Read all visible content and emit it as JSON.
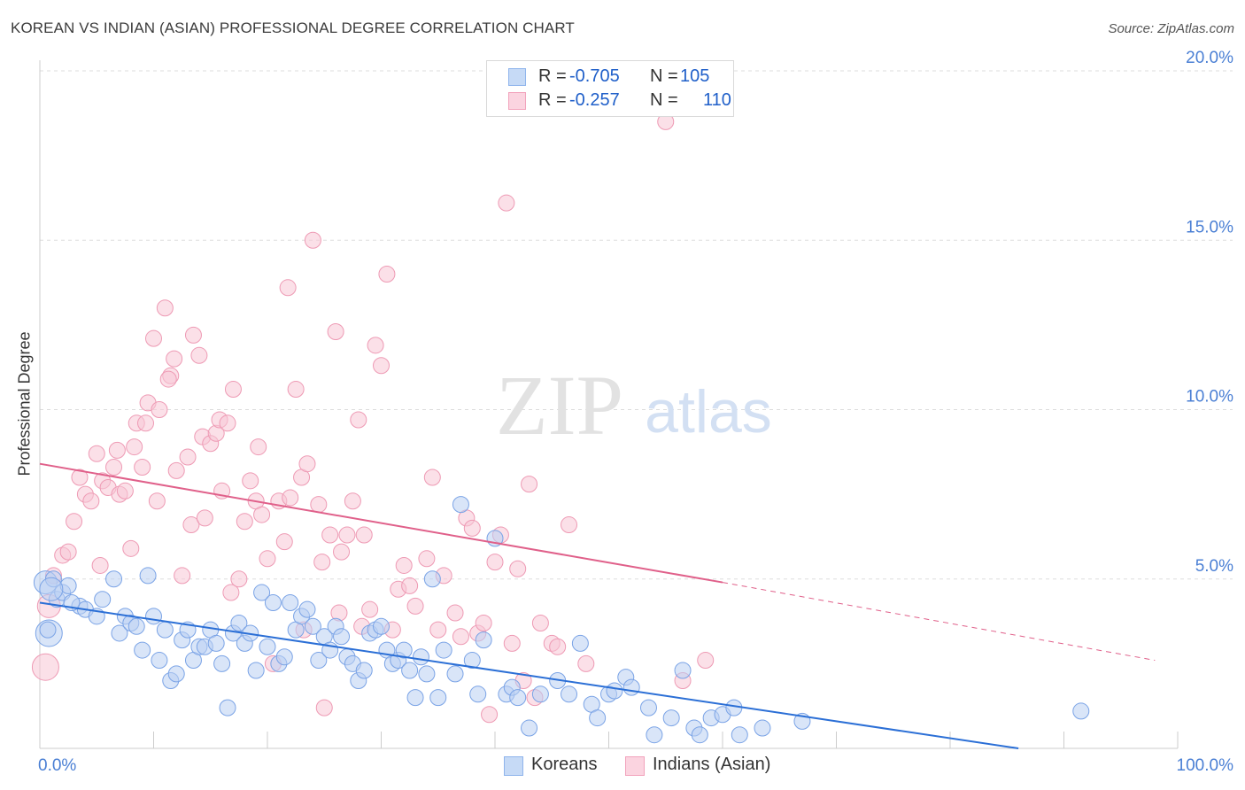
{
  "header": {
    "title": "KOREAN VS INDIAN (ASIAN) PROFESSIONAL DEGREE CORRELATION CHART",
    "source": "Source: ZipAtlas.com"
  },
  "watermark": {
    "zip": "ZIP",
    "atlas": "atlas"
  },
  "legend": {
    "rows": [
      {
        "r_label": "R =",
        "r_value": "-0.705",
        "n_label": "N =",
        "n_value": "105",
        "color": "#8fb4ec"
      },
      {
        "r_label": "R =",
        "r_value": "-0.257",
        "n_label": "N =",
        "n_value": "110",
        "color": "#f2a3bc"
      }
    ]
  },
  "bottom_legend": [
    {
      "label": "Koreans",
      "color": "#8fb4ec"
    },
    {
      "label": "Indians (Asian)",
      "color": "#f2a3bc"
    }
  ],
  "colors": {
    "korean_fill": "#b9cff3",
    "korean_stroke": "#7aa3e6",
    "korean_line": "#2b6fd6",
    "indian_fill": "#f8c7d5",
    "indian_stroke": "#ee9ab4",
    "indian_line": "#e0608a",
    "axis_text": "#4a7fd4",
    "grid": "#dddddd"
  },
  "chart_data": {
    "type": "scatter",
    "title": "KOREAN VS INDIAN (ASIAN) PROFESSIONAL DEGREE CORRELATION CHART",
    "xlabel": "",
    "ylabel": "Professional Degree",
    "xlim": [
      0,
      100
    ],
    "ylim": [
      0,
      20
    ],
    "x_tick_labels": [
      {
        "value": 0,
        "label": "0.0%"
      },
      {
        "value": 100,
        "label": "100.0%"
      }
    ],
    "y_tick_labels": [
      {
        "value": 5,
        "label": "5.0%"
      },
      {
        "value": 10,
        "label": "10.0%"
      },
      {
        "value": 15,
        "label": "15.0%"
      },
      {
        "value": 20,
        "label": "20.0%"
      }
    ],
    "grid": "horizontal dashed",
    "legend_position": "top-center",
    "series": [
      {
        "name": "Koreans",
        "trend": {
          "x": [
            0,
            86
          ],
          "y": [
            4.3,
            0.0
          ]
        },
        "points": [
          [
            0.5,
            4.9
          ],
          [
            0.8,
            3.4
          ],
          [
            1.2,
            5.0
          ],
          [
            1.5,
            4.4
          ],
          [
            2.0,
            4.6
          ],
          [
            2.5,
            4.8
          ],
          [
            3.5,
            4.2
          ],
          [
            4.0,
            4.1
          ],
          [
            5.0,
            3.9
          ],
          [
            5.5,
            4.4
          ],
          [
            6.5,
            5.0
          ],
          [
            7.0,
            3.4
          ],
          [
            7.5,
            3.9
          ],
          [
            8.0,
            3.7
          ],
          [
            8.5,
            3.6
          ],
          [
            9.0,
            2.9
          ],
          [
            9.5,
            5.1
          ],
          [
            10.0,
            3.9
          ],
          [
            10.5,
            2.6
          ],
          [
            11.0,
            3.5
          ],
          [
            11.5,
            2.0
          ],
          [
            12.0,
            2.2
          ],
          [
            12.5,
            3.2
          ],
          [
            13.0,
            3.5
          ],
          [
            13.5,
            2.6
          ],
          [
            14.0,
            3.0
          ],
          [
            14.5,
            3.0
          ],
          [
            15.0,
            3.5
          ],
          [
            15.5,
            3.1
          ],
          [
            16.0,
            2.5
          ],
          [
            16.5,
            1.2
          ],
          [
            17.0,
            3.4
          ],
          [
            17.5,
            3.7
          ],
          [
            18.0,
            3.1
          ],
          [
            18.5,
            3.4
          ],
          [
            19.0,
            2.3
          ],
          [
            19.5,
            4.6
          ],
          [
            20.0,
            3.0
          ],
          [
            20.5,
            4.3
          ],
          [
            21.0,
            2.5
          ],
          [
            21.5,
            2.7
          ],
          [
            22.0,
            4.3
          ],
          [
            22.5,
            3.5
          ],
          [
            23.0,
            3.9
          ],
          [
            23.5,
            4.1
          ],
          [
            24.0,
            3.6
          ],
          [
            24.5,
            2.6
          ],
          [
            25.0,
            3.3
          ],
          [
            25.5,
            2.9
          ],
          [
            26.0,
            3.6
          ],
          [
            26.5,
            3.3
          ],
          [
            27.0,
            2.7
          ],
          [
            27.5,
            2.5
          ],
          [
            28.0,
            2.0
          ],
          [
            28.5,
            2.3
          ],
          [
            29.0,
            3.4
          ],
          [
            29.5,
            3.5
          ],
          [
            30.0,
            3.6
          ],
          [
            30.5,
            2.9
          ],
          [
            31.0,
            2.5
          ],
          [
            31.5,
            2.6
          ],
          [
            32.0,
            2.9
          ],
          [
            32.5,
            2.3
          ],
          [
            33.0,
            1.5
          ],
          [
            33.5,
            2.7
          ],
          [
            34.0,
            2.2
          ],
          [
            34.5,
            5.0
          ],
          [
            35.0,
            1.5
          ],
          [
            35.5,
            2.9
          ],
          [
            36.5,
            2.2
          ],
          [
            37.0,
            7.2
          ],
          [
            38.0,
            2.6
          ],
          [
            38.5,
            1.6
          ],
          [
            39.0,
            3.2
          ],
          [
            40.0,
            6.2
          ],
          [
            41.0,
            1.6
          ],
          [
            41.5,
            1.8
          ],
          [
            42.0,
            1.5
          ],
          [
            43.0,
            0.6
          ],
          [
            44.0,
            1.6
          ],
          [
            45.5,
            2.0
          ],
          [
            46.5,
            1.6
          ],
          [
            47.5,
            3.1
          ],
          [
            48.5,
            1.3
          ],
          [
            49.0,
            0.9
          ],
          [
            50.0,
            1.6
          ],
          [
            50.5,
            1.7
          ],
          [
            51.5,
            2.1
          ],
          [
            52.0,
            1.8
          ],
          [
            53.5,
            1.2
          ],
          [
            54.0,
            0.4
          ],
          [
            55.5,
            0.9
          ],
          [
            56.5,
            2.3
          ],
          [
            57.5,
            0.6
          ],
          [
            58.0,
            0.4
          ],
          [
            59.0,
            0.9
          ],
          [
            60.0,
            1.0
          ],
          [
            61.0,
            1.2
          ],
          [
            61.5,
            0.4
          ],
          [
            63.5,
            0.6
          ],
          [
            67.0,
            0.8
          ],
          [
            91.5,
            1.1
          ],
          [
            0.7,
            3.5
          ],
          [
            2.8,
            4.3
          ],
          [
            1.0,
            4.7
          ]
        ],
        "sizes": {
          "0": 13,
          "1": 15,
          "104": 13
        }
      },
      {
        "name": "Indians (Asian)",
        "trend": {
          "x": [
            0,
            60
          ],
          "y": [
            8.4,
            4.9
          ]
        },
        "trend_dashed": {
          "x": [
            60,
            98
          ],
          "y": [
            4.9,
            2.6
          ]
        },
        "points": [
          [
            0.5,
            2.4
          ],
          [
            0.8,
            4.2
          ],
          [
            1.2,
            5.1
          ],
          [
            2.0,
            5.7
          ],
          [
            2.5,
            5.8
          ],
          [
            3.0,
            6.7
          ],
          [
            3.5,
            8.0
          ],
          [
            4.0,
            7.5
          ],
          [
            4.5,
            7.3
          ],
          [
            5.0,
            8.7
          ],
          [
            5.5,
            7.9
          ],
          [
            6.0,
            7.7
          ],
          [
            6.5,
            8.3
          ],
          [
            6.8,
            8.8
          ],
          [
            7.0,
            7.5
          ],
          [
            7.5,
            7.6
          ],
          [
            8.0,
            5.9
          ],
          [
            8.3,
            8.9
          ],
          [
            8.5,
            9.6
          ],
          [
            9.0,
            8.3
          ],
          [
            9.3,
            9.6
          ],
          [
            9.5,
            10.2
          ],
          [
            10.0,
            12.1
          ],
          [
            10.3,
            7.3
          ],
          [
            10.5,
            10.0
          ],
          [
            11.0,
            13.0
          ],
          [
            11.5,
            11.0
          ],
          [
            11.8,
            11.5
          ],
          [
            12.0,
            8.2
          ],
          [
            12.5,
            5.1
          ],
          [
            13.0,
            8.6
          ],
          [
            13.3,
            6.6
          ],
          [
            13.5,
            12.2
          ],
          [
            14.0,
            11.6
          ],
          [
            14.3,
            9.2
          ],
          [
            14.5,
            6.8
          ],
          [
            15.0,
            9.0
          ],
          [
            15.5,
            9.3
          ],
          [
            15.8,
            9.7
          ],
          [
            16.0,
            7.6
          ],
          [
            16.5,
            9.6
          ],
          [
            16.8,
            4.6
          ],
          [
            17.0,
            10.6
          ],
          [
            17.5,
            5.0
          ],
          [
            18.0,
            6.7
          ],
          [
            18.5,
            7.9
          ],
          [
            19.0,
            7.3
          ],
          [
            19.2,
            8.9
          ],
          [
            19.5,
            6.9
          ],
          [
            20.0,
            5.6
          ],
          [
            20.5,
            2.5
          ],
          [
            21.0,
            7.3
          ],
          [
            21.5,
            6.1
          ],
          [
            21.8,
            13.6
          ],
          [
            22.0,
            7.4
          ],
          [
            22.5,
            10.6
          ],
          [
            23.0,
            8.0
          ],
          [
            23.2,
            3.5
          ],
          [
            23.5,
            8.4
          ],
          [
            24.0,
            15.0
          ],
          [
            24.5,
            7.2
          ],
          [
            24.8,
            5.5
          ],
          [
            25.0,
            1.2
          ],
          [
            25.5,
            6.3
          ],
          [
            26.0,
            12.3
          ],
          [
            26.3,
            4.0
          ],
          [
            26.5,
            5.8
          ],
          [
            27.0,
            6.3
          ],
          [
            27.5,
            7.3
          ],
          [
            28.0,
            9.7
          ],
          [
            28.3,
            3.6
          ],
          [
            28.5,
            6.3
          ],
          [
            29.0,
            4.1
          ],
          [
            29.5,
            11.9
          ],
          [
            30.0,
            11.3
          ],
          [
            30.5,
            14.0
          ],
          [
            31.0,
            3.5
          ],
          [
            31.5,
            4.7
          ],
          [
            32.0,
            5.4
          ],
          [
            32.5,
            4.8
          ],
          [
            33.0,
            4.2
          ],
          [
            34.0,
            5.6
          ],
          [
            34.5,
            8.0
          ],
          [
            35.0,
            3.5
          ],
          [
            35.5,
            5.1
          ],
          [
            36.5,
            4.0
          ],
          [
            37.0,
            3.3
          ],
          [
            37.5,
            6.8
          ],
          [
            38.0,
            6.5
          ],
          [
            38.5,
            3.4
          ],
          [
            39.0,
            3.7
          ],
          [
            39.5,
            1.0
          ],
          [
            40.0,
            5.5
          ],
          [
            40.5,
            6.3
          ],
          [
            41.0,
            16.1
          ],
          [
            41.5,
            3.1
          ],
          [
            42.0,
            5.3
          ],
          [
            42.5,
            2.0
          ],
          [
            43.0,
            7.8
          ],
          [
            43.5,
            1.5
          ],
          [
            44.0,
            3.7
          ],
          [
            45.0,
            3.1
          ],
          [
            45.5,
            3.0
          ],
          [
            46.5,
            6.6
          ],
          [
            48.0,
            2.5
          ],
          [
            55.0,
            18.5
          ],
          [
            56.5,
            2.0
          ],
          [
            58.5,
            2.6
          ],
          [
            11.3,
            10.9
          ],
          [
            5.3,
            5.4
          ]
        ],
        "sizes": {
          "0": 15,
          "1": 13
        }
      }
    ]
  }
}
